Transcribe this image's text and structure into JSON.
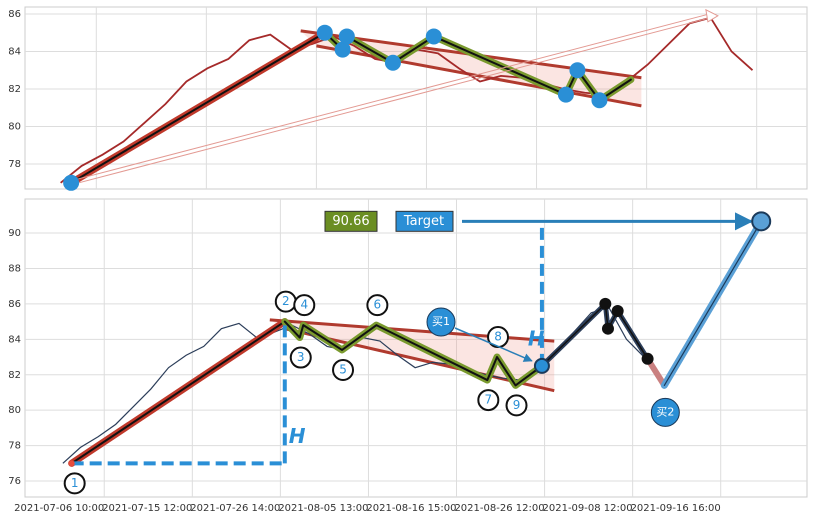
{
  "chart_data": [
    {
      "type": "line",
      "x": [
        0,
        2,
        4,
        6,
        8,
        10,
        12,
        14,
        16,
        18,
        20,
        22,
        24,
        26,
        28,
        30,
        32,
        34,
        36,
        38,
        40,
        42,
        44,
        46,
        48,
        50,
        52,
        54,
        56,
        58,
        60,
        62,
        64,
        66
      ],
      "values": [
        77.0,
        77.9,
        78.5,
        79.2,
        80.2,
        81.2,
        82.4,
        83.1,
        83.6,
        84.6,
        84.9,
        84.1,
        84.4,
        84.8,
        84.3,
        83.6,
        83.4,
        84.1,
        83.9,
        83.1,
        82.4,
        82.7,
        82.6,
        82.3,
        82.0,
        81.8,
        81.7,
        82.4,
        83.3,
        84.4,
        85.5,
        85.8,
        84.0,
        83.0
      ],
      "color": "#a52a2a",
      "xlim": [
        -3.4,
        71.2
      ],
      "ylim": [
        76.67,
        86.37
      ],
      "yticks": [
        78,
        80,
        82,
        84,
        86
      ],
      "xticks": [
        3.4,
        13.9,
        24.4,
        34.9,
        45.4,
        55.9,
        66.4
      ],
      "grid": true,
      "channel": {
        "upper": {
          "x": [
            22.9,
            55.4
          ],
          "y": [
            85.1,
            82.6
          ]
        },
        "lower": {
          "x": [
            24.4,
            55.4
          ],
          "y": [
            84.3,
            81.1
          ]
        }
      },
      "arrow_end": {
        "x": 62.7,
        "y": 85.9
      }
    },
    {
      "type": "line",
      "x": [
        0,
        2,
        4,
        6,
        8,
        10,
        12,
        14,
        16,
        18,
        20,
        22,
        24,
        26,
        28,
        30,
        32,
        34,
        36,
        38,
        40,
        42,
        44,
        46,
        48,
        50,
        52,
        54,
        56,
        58,
        60,
        62,
        64,
        66
      ],
      "values": [
        77.0,
        77.9,
        78.5,
        79.2,
        80.2,
        81.2,
        82.4,
        83.1,
        83.6,
        84.6,
        84.9,
        84.1,
        84.4,
        84.8,
        84.3,
        83.6,
        83.4,
        84.1,
        83.9,
        83.1,
        82.4,
        82.7,
        82.6,
        82.3,
        82.0,
        81.8,
        81.7,
        82.4,
        83.3,
        84.4,
        85.5,
        85.8,
        84.0,
        83.0
      ],
      "color": "#2c3e5a",
      "xlim": [
        -4.3,
        84.5
      ],
      "ylim": [
        75.1,
        91.92
      ],
      "yticks": [
        76,
        78,
        80,
        82,
        84,
        86,
        88,
        90
      ],
      "xticks": [
        {
          "value": 4.7,
          "label": "2021-07-06 10:00"
        },
        {
          "value": 14.7,
          "label": "2021-07-15 12:00"
        },
        {
          "value": 24.7,
          "label": "2021-07-26 14:00"
        },
        {
          "value": 34.7,
          "label": "2021-08-05 13:00"
        },
        {
          "value": 44.7,
          "label": "2021-08-16 15:00"
        },
        {
          "value": 54.7,
          "label": "2021-08-26 12:00"
        },
        {
          "value": 64.7,
          "label": "2021-09-08 12:00"
        },
        {
          "value": 74.7,
          "label": "2021-09-16 16:00"
        }
      ],
      "grid": true,
      "pattern_points": [
        {
          "label": "1",
          "x": 1.0,
          "y": 77.0
        },
        {
          "label": "2",
          "x": 25.2,
          "y": 85.0
        },
        {
          "label": "3",
          "x": 26.9,
          "y": 84.1
        },
        {
          "label": "4",
          "x": 27.3,
          "y": 84.8
        },
        {
          "label": "5",
          "x": 31.7,
          "y": 83.4
        },
        {
          "label": "6",
          "x": 35.6,
          "y": 84.8
        },
        {
          "label": "7",
          "x": 48.2,
          "y": 81.7
        },
        {
          "label": "8",
          "x": 49.3,
          "y": 83.0
        },
        {
          "label": "9",
          "x": 51.4,
          "y": 81.4
        }
      ],
      "breakout": {
        "x": 54.4,
        "y": 82.5
      },
      "channel": {
        "upper": {
          "x": [
            23.5,
            55.8
          ],
          "y": [
            85.1,
            83.9
          ]
        },
        "lower": {
          "x": [
            25.2,
            55.8
          ],
          "y": [
            84.6,
            81.1
          ]
        }
      },
      "black_points": [
        {
          "x": 61.6,
          "y": 86.0
        },
        {
          "x": 61.9,
          "y": 84.6
        },
        {
          "x": 63.0,
          "y": 85.6
        },
        {
          "x": 66.4,
          "y": 82.9
        }
      ],
      "buy_points": [
        {
          "label": "买1",
          "x": 54.4,
          "y": 82.5
        },
        {
          "label": "买2",
          "x": 68.3,
          "y": 81.4
        }
      ],
      "target": {
        "label": "Target",
        "x": 79.3,
        "y": 90.66,
        "value_label": "90.66"
      },
      "h_label": "H"
    }
  ]
}
